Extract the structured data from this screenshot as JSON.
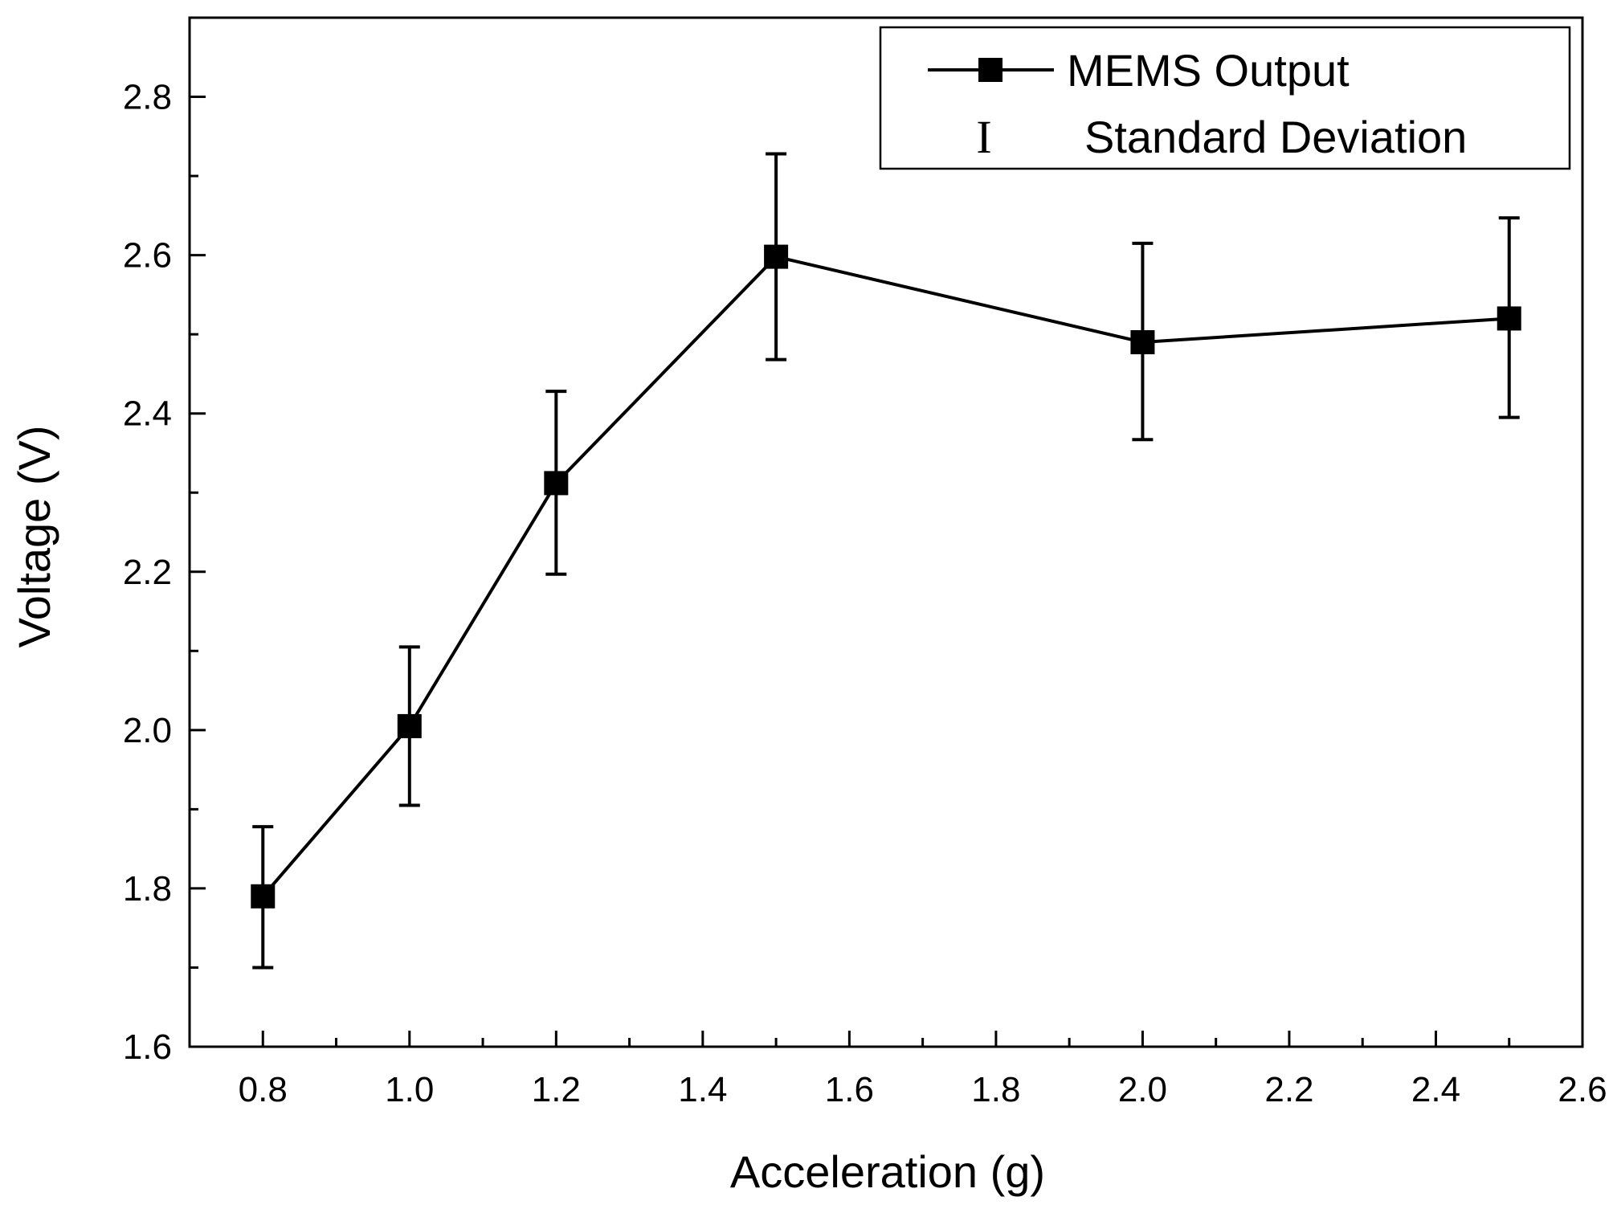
{
  "chart_data": {
    "type": "line",
    "title": "",
    "xlabel": "Acceleration (g)",
    "ylabel": "Voltage (V)",
    "xlim": [
      0.7,
      2.6
    ],
    "ylim": [
      1.6,
      2.9
    ],
    "x_ticks": [
      0.8,
      1.0,
      1.2,
      1.4,
      1.6,
      1.8,
      2.0,
      2.2,
      2.4,
      2.6
    ],
    "x_tick_labels": [
      "0.8",
      "1.0",
      "1.2",
      "1.4",
      "1.6",
      "1.8",
      "2.0",
      "2.2",
      "2.4",
      "2.6"
    ],
    "y_ticks": [
      1.6,
      1.8,
      2.0,
      2.2,
      2.4,
      2.6,
      2.8
    ],
    "y_tick_labels": [
      "1.6",
      "1.8",
      "2.0",
      "2.2",
      "2.4",
      "2.6",
      "2.8"
    ],
    "grid": false,
    "legend_position": "top-right",
    "series": [
      {
        "name": "MEMS Output",
        "marker": "square",
        "color": "#000000",
        "x": [
          0.8,
          1.0,
          1.2,
          1.5,
          2.0,
          2.5
        ],
        "y": [
          1.79,
          2.005,
          2.312,
          2.598,
          2.49,
          2.52
        ],
        "err_low": [
          1.7,
          1.905,
          2.197,
          2.468,
          2.367,
          2.395
        ],
        "err_high": [
          1.878,
          2.105,
          2.428,
          2.728,
          2.615,
          2.647
        ]
      }
    ],
    "legend": {
      "entries": [
        "MEMS Output",
        "Standard Deviation"
      ],
      "error_symbol": "I"
    }
  }
}
